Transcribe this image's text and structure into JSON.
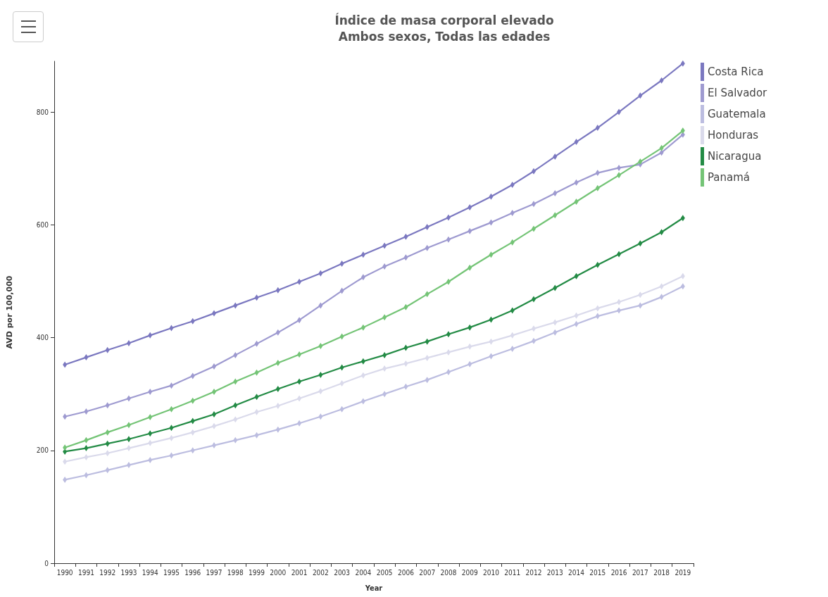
{
  "chart_data": {
    "type": "line",
    "title": "Índice de masa corporal elevado",
    "subtitle": "Ambos sexos, Todas las edades",
    "xlabel": "Year",
    "ylabel": "AVD por 100,000",
    "categories": [
      "1990",
      "1991",
      "1992",
      "1993",
      "1994",
      "1995",
      "1996",
      "1997",
      "1998",
      "1999",
      "2000",
      "2001",
      "2002",
      "2003",
      "2004",
      "2005",
      "2006",
      "2007",
      "2008",
      "2009",
      "2010",
      "2011",
      "2012",
      "2013",
      "2014",
      "2015",
      "2016",
      "2017",
      "2018",
      "2019"
    ],
    "series": [
      {
        "name": "Costa Rica",
        "color": "#7b78c0",
        "values": [
          352,
          365,
          378,
          390,
          404,
          417,
          429,
          443,
          457,
          471,
          484,
          499,
          514,
          531,
          547,
          563,
          579,
          596,
          613,
          631,
          650,
          671,
          695,
          721,
          747,
          772,
          800,
          829,
          856,
          886
        ]
      },
      {
        "name": "El Salvador",
        "color": "#9e9ad0",
        "values": [
          260,
          269,
          280,
          292,
          304,
          315,
          332,
          349,
          369,
          389,
          409,
          431,
          457,
          483,
          507,
          526,
          542,
          559,
          574,
          589,
          604,
          621,
          637,
          656,
          675,
          692,
          701,
          707,
          728,
          760
        ]
      },
      {
        "name": "Guatemala",
        "color": "#bcbde0",
        "values": [
          148,
          156,
          165,
          174,
          183,
          191,
          200,
          209,
          218,
          227,
          237,
          248,
          260,
          273,
          287,
          300,
          313,
          325,
          339,
          353,
          367,
          380,
          394,
          409,
          424,
          438,
          448,
          457,
          472,
          491
        ]
      },
      {
        "name": "Honduras",
        "color": "#dadaeb",
        "values": [
          180,
          188,
          195,
          204,
          213,
          222,
          232,
          243,
          255,
          268,
          279,
          292,
          305,
          319,
          333,
          345,
          354,
          364,
          374,
          384,
          393,
          404,
          416,
          427,
          439,
          452,
          463,
          476,
          491,
          509
        ]
      },
      {
        "name": "Nicaragua",
        "color": "#238b45",
        "values": [
          198,
          204,
          212,
          220,
          230,
          240,
          252,
          264,
          280,
          295,
          309,
          322,
          334,
          347,
          358,
          369,
          382,
          393,
          406,
          418,
          432,
          448,
          468,
          488,
          509,
          529,
          548,
          567,
          587,
          612
        ]
      },
      {
        "name": "Panamá",
        "color": "#74c476",
        "values": [
          205,
          218,
          232,
          245,
          259,
          273,
          288,
          304,
          322,
          338,
          355,
          370,
          385,
          402,
          418,
          436,
          454,
          477,
          499,
          524,
          547,
          569,
          593,
          617,
          641,
          665,
          688,
          712,
          736,
          767
        ]
      }
    ],
    "ylim": [
      0,
      890
    ],
    "yticks": [
      0,
      200,
      400,
      600,
      800
    ],
    "grid": false,
    "legend": "top right",
    "marker": "diamond",
    "line_style": "solid"
  }
}
